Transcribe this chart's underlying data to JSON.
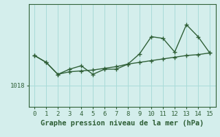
{
  "x": [
    0,
    1,
    2,
    3,
    4,
    5,
    6,
    7,
    8,
    9,
    10,
    11,
    12,
    13,
    14,
    15
  ],
  "y_main": [
    1021.5,
    1020.7,
    1019.3,
    1019.9,
    1020.3,
    1019.3,
    1019.9,
    1019.9,
    1020.5,
    1021.7,
    1023.7,
    1023.5,
    1021.9,
    1025.1,
    1023.7,
    1021.8
  ],
  "y_trend": [
    1021.5,
    1020.7,
    1019.3,
    1019.6,
    1019.7,
    1019.8,
    1020.0,
    1020.2,
    1020.5,
    1020.7,
    1020.9,
    1021.1,
    1021.3,
    1021.5,
    1021.6,
    1021.8
  ],
  "xlabel": "Graphe pression niveau de la mer (hPa)",
  "ytick_value": 1018,
  "ytick_label": "1018",
  "ylim": [
    1015.5,
    1027.5
  ],
  "xlim": [
    -0.5,
    15.5
  ],
  "bg_color": "#d4eeec",
  "grid_color": "#a8dbd8",
  "line_color": "#2d5e35",
  "marker": "+",
  "markersize": 4,
  "markeredgewidth": 1.0,
  "linewidth": 1.0,
  "xlabel_fontsize": 7.5,
  "tick_fontsize": 6.5,
  "fig_width": 3.2,
  "fig_height": 2.0,
  "dpi": 100
}
